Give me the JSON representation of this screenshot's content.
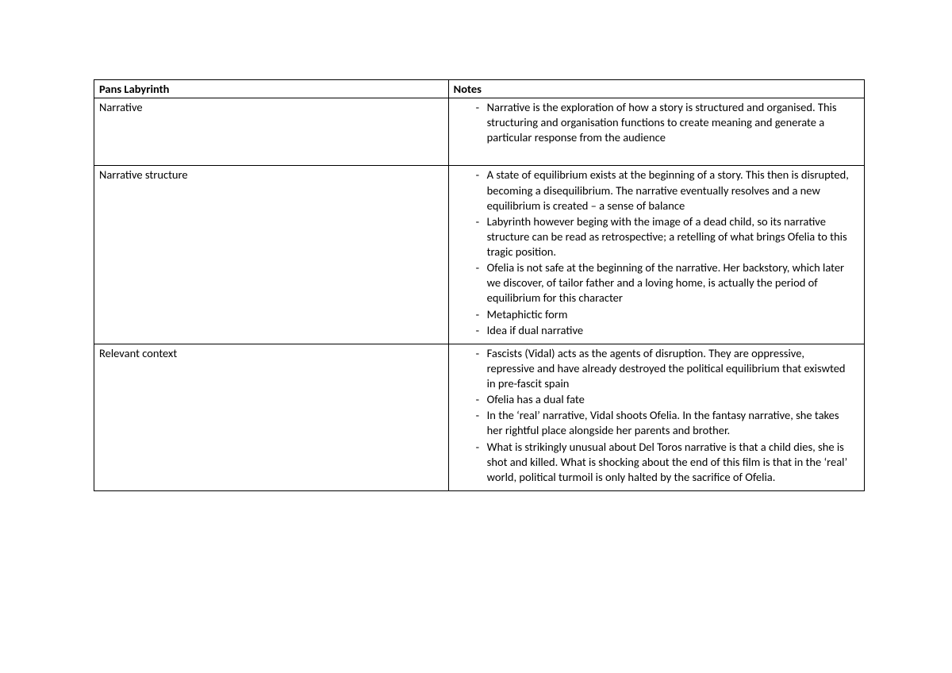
{
  "table": {
    "header": {
      "col1": "Pans Labyrinth",
      "col2": "Notes"
    },
    "rows": [
      {
        "topic": "Narrative",
        "bullets": [
          "Narrative is the exploration of how a story is structured and organised. This structuring and organisation functions to create meaning and generate a particular response from the audience"
        ],
        "trailing_space": true
      },
      {
        "topic": "Narrative structure",
        "bullets": [
          "A state of equilibrium exists at the beginning of a story. This then is disrupted, becoming a disequilibrium. The narrative eventually resolves and a new equilibrium is created – a sense of balance",
          "Labyrinth however beging with the image of a dead child, so its narrative structure can be read as retrospective; a retelling of what brings Ofelia to this tragic position.",
          "Ofelia is not safe at the beginning of the narrative. Her backstory, which later we discover, of tailor father and a loving home, is actually the period of equilibrium for this character",
          "Metaphictic form",
          "Idea if dual narrative"
        ],
        "trailing_space": false
      },
      {
        "topic": "Relevant context",
        "bullets": [
          "Fascists (Vidal) acts as the agents of disruption. They are oppressive, repressive and have already destroyed the political equilibrium that exiswted in pre-fascit spain",
          "Ofelia has a dual fate",
          "In the ‘real’ narrative, Vidal shoots Ofelia. In the fantasy narrative, she takes her rightful place alongside her parents and brother.",
          "What is strikingly unusual about Del Toros narrative is that a child dies, she is shot and killed. What is shocking about the end of this film is that in the ‘real’ world, political turmoil is only halted by the sacrifice of Ofelia."
        ],
        "trailing_space": false
      }
    ]
  },
  "style": {
    "font_family": "Calibri",
    "font_size_pt": 11,
    "text_color": "#000000",
    "border_color": "#000000",
    "background": "#ffffff",
    "col_widths_pct": [
      46,
      54
    ]
  }
}
